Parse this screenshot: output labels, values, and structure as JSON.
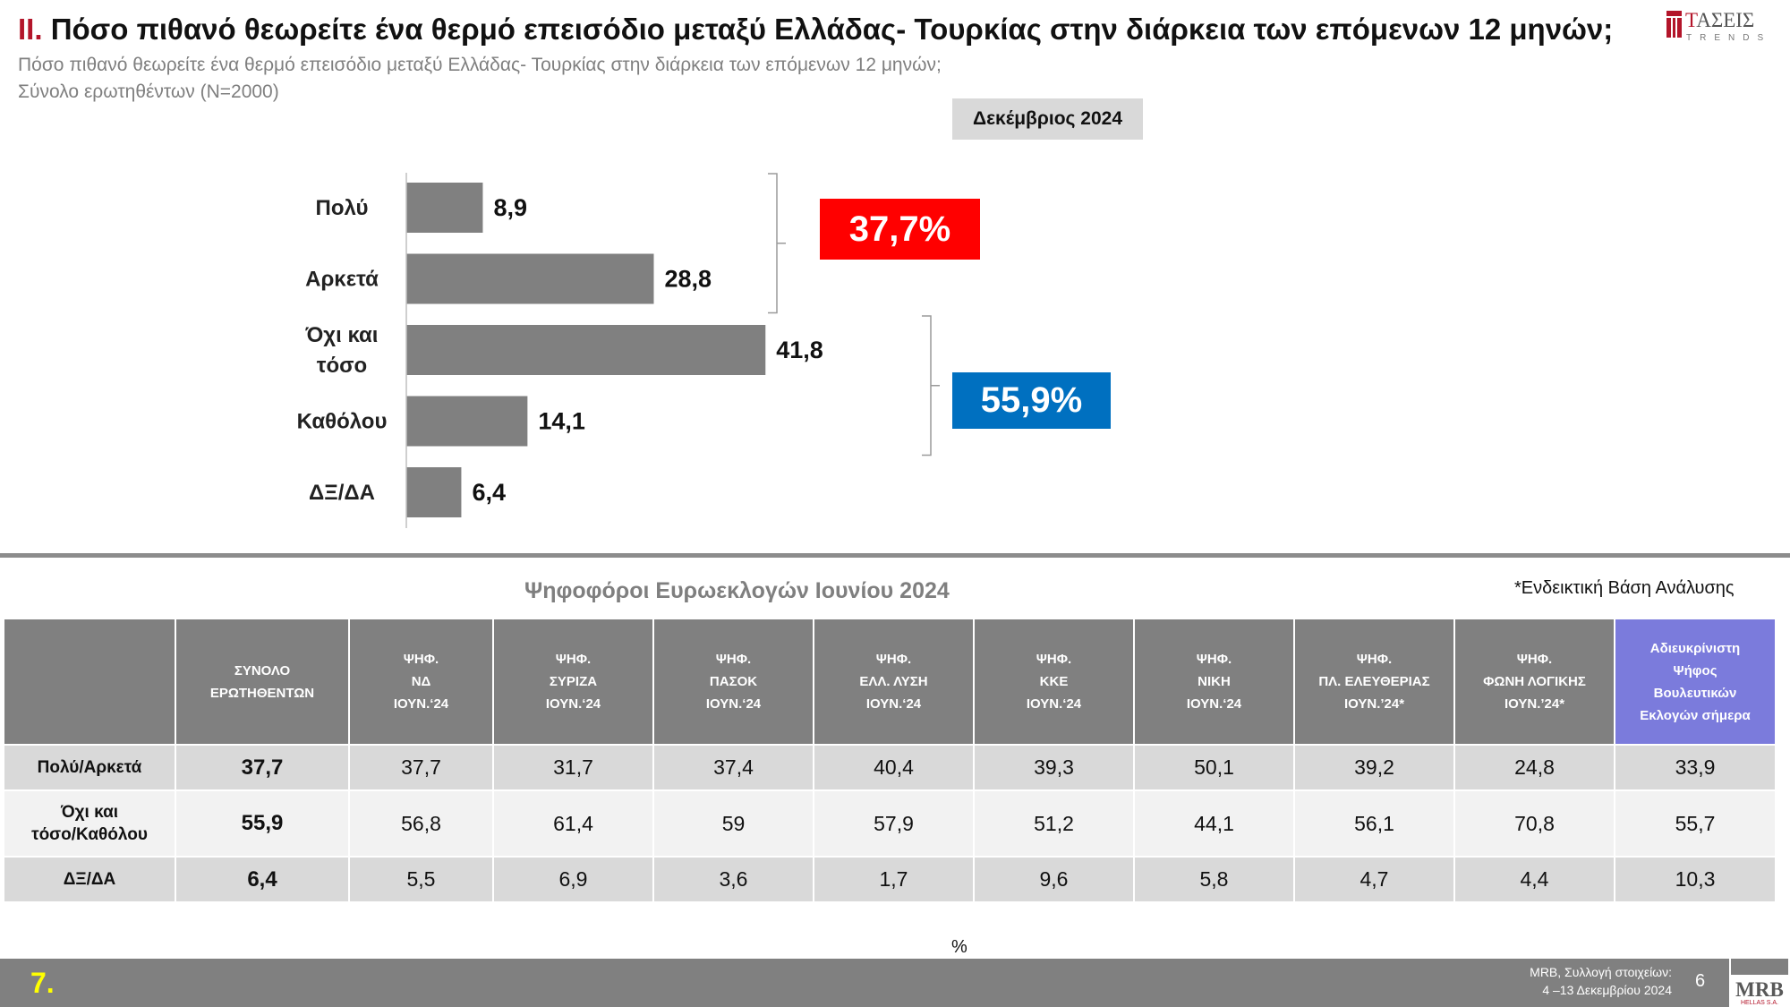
{
  "header": {
    "title_number": "II.",
    "title_text": "Πόσο πιθανό θεωρείτε ένα θερμό επεισόδιο μεταξύ Ελλάδας- Τουρκίας στην διάρκεια των επόμενων 12 μηνών;",
    "subtitle_line1": "Πόσο πιθανό θεωρείτε ένα θερμό επεισόδιο μεταξύ Ελλάδας- Τουρκίας στην διάρκεια των επόμενων 12 μηνών;",
    "subtitle_line2": "Σύνολο ερωτηθέντων (N=2000)",
    "period_badge": "Δεκέμβριος 2024"
  },
  "logo": {
    "word_first": "Τ",
    "word_rest": "ΑΣΕΙΣ",
    "sub": "TRENDS"
  },
  "chart_data": {
    "type": "bar",
    "orientation": "horizontal",
    "categories": [
      [
        "Πολύ"
      ],
      [
        "Αρκετά"
      ],
      [
        "Όχι και",
        "τόσο"
      ],
      [
        "Καθόλου"
      ],
      [
        "ΔΞ/ΔΑ"
      ]
    ],
    "values": [
      8.9,
      28.8,
      41.8,
      14.1,
      6.4
    ],
    "value_labels": [
      "8,9",
      "28,8",
      "41,8",
      "14,1",
      "6,4"
    ],
    "bar_color": "#808080",
    "groups": [
      {
        "label": "37,7%",
        "members": [
          0,
          1
        ],
        "color": "#ff0000"
      },
      {
        "label": "55,9%",
        "members": [
          2,
          3
        ],
        "color": "#0070c0"
      }
    ]
  },
  "table": {
    "title": "Ψηφοφόροι Ευρωεκλογών Ιουνίου 2024",
    "note": "*Ενδεικτική Βάση Ανάλυσης",
    "headers": [
      [
        "ΣΥΝΟΛΟ",
        "ΕΡΩΤΗΘΕΝΤΩΝ"
      ],
      [
        "ΨΗΦ.",
        "ΝΔ",
        "ΙΟΥΝ.‘24"
      ],
      [
        "ΨΗΦ.",
        "ΣΥΡΙΖΑ",
        "ΙΟΥΝ.‘24"
      ],
      [
        "ΨΗΦ.",
        "ΠΑΣΟΚ",
        "ΙΟΥΝ.‘24"
      ],
      [
        "ΨΗΦ.",
        "ΕΛΛ. ΛΥΣΗ",
        "ΙΟΥΝ.‘24"
      ],
      [
        "ΨΗΦ.",
        "ΚΚΕ",
        "ΙΟΥΝ.‘24"
      ],
      [
        "ΨΗΦ.",
        "ΝΙΚΗ",
        "ΙΟΥΝ.‘24"
      ],
      [
        "ΨΗΦ.",
        "ΠΛ. ΕΛΕΥΘΕΡΙΑΣ",
        "ΙΟΥΝ.’24*"
      ],
      [
        "ΨΗΦ.",
        "ΦΩΝΗ ΛΟΓΙΚΗΣ",
        "ΙΟΥΝ.’24*"
      ],
      [
        "Αδιευκρίνιστη",
        "Ψήφος",
        "Βουλευτικών",
        "Εκλογών  σήμερα"
      ]
    ],
    "rows": [
      {
        "label": [
          "Πολύ/Αρκετά"
        ],
        "values": [
          "37,7",
          "37,7",
          "31,7",
          "37,4",
          "40,4",
          "39,3",
          "50,1",
          "39,2",
          "24,8",
          "33,9"
        ]
      },
      {
        "label": [
          "Όχι και",
          "τόσο/Καθόλου"
        ],
        "values": [
          "55,9",
          "56,8",
          "61,4",
          "59",
          "57,9",
          "51,2",
          "44,1",
          "56,1",
          "70,8",
          "55,7"
        ]
      },
      {
        "label": [
          "ΔΞ/ΔΑ"
        ],
        "values": [
          "6,4",
          "5,5",
          "6,9",
          "3,6",
          "1,7",
          "9,6",
          "5,8",
          "4,7",
          "4,4",
          "10,3"
        ]
      }
    ],
    "highlight_color": "#7b7bdc"
  },
  "footer": {
    "percent_mark": "%",
    "section": "7.",
    "source_line1": "MRB, Συλλογή στοιχείων:",
    "source_line2": "4 –13 Δεκεμβρίου 2024",
    "page_number": "6",
    "mrb_text": "MRB",
    "mrb_sub": "HELLAS S.A."
  }
}
